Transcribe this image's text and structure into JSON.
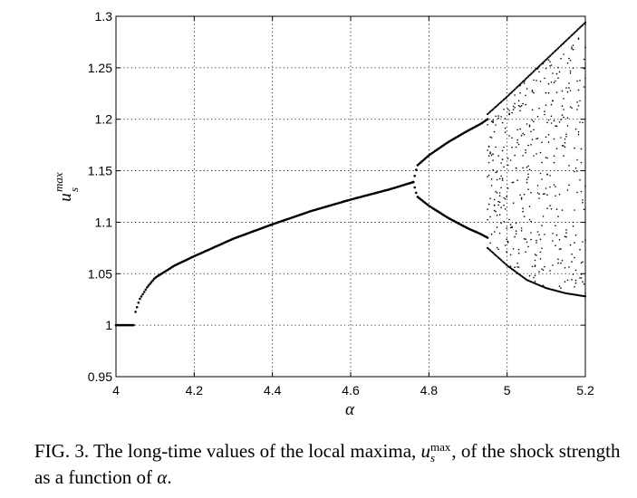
{
  "chart_data": {
    "type": "scatter",
    "title": "",
    "xlabel": "α",
    "ylabel": "u_s^max",
    "xlim": [
      4,
      5.2
    ],
    "ylim": [
      0.95,
      1.3
    ],
    "xticks": [
      4,
      4.2,
      4.4,
      4.6,
      4.8,
      5,
      5.2
    ],
    "yticks": [
      0.95,
      1,
      1.05,
      1.1,
      1.15,
      1.2,
      1.25,
      1.3
    ],
    "xtick_labels": [
      "4",
      "4.2",
      "4.4",
      "4.6",
      "4.8",
      "5",
      "5.2"
    ],
    "ytick_labels": [
      "0.95",
      "1",
      "1.05",
      "1.1",
      "1.15",
      "1.2",
      "1.25",
      "1.3"
    ],
    "grid": true,
    "grid_style": "dotted",
    "marker_color": "#000000",
    "series": [
      {
        "branch": "fixed",
        "x": [
          4.0,
          4.02,
          4.045
        ],
        "y": [
          1.0,
          1.0,
          1.0
        ]
      },
      {
        "branch": "single",
        "x": [
          4.05,
          4.06,
          4.08,
          4.1,
          4.15,
          4.2,
          4.3,
          4.4,
          4.5,
          4.6,
          4.7,
          4.76
        ],
        "y": [
          1.013,
          1.025,
          1.037,
          1.046,
          1.058,
          1.067,
          1.084,
          1.098,
          1.111,
          1.122,
          1.132,
          1.139
        ]
      },
      {
        "branch": "period-2 upper",
        "x": [
          4.76,
          4.77,
          4.8,
          4.85,
          4.9,
          4.93,
          4.95
        ],
        "y": [
          1.139,
          1.155,
          1.165,
          1.178,
          1.189,
          1.195,
          1.2
        ]
      },
      {
        "branch": "period-2 lower",
        "x": [
          4.76,
          4.77,
          4.8,
          4.85,
          4.9,
          4.93,
          4.95
        ],
        "y": [
          1.139,
          1.125,
          1.116,
          1.104,
          1.094,
          1.089,
          1.085
        ]
      },
      {
        "branch": "chaotic band upper edge",
        "x": [
          4.95,
          5.0,
          5.05,
          5.1,
          5.15,
          5.2
        ],
        "y": [
          1.205,
          1.222,
          1.24,
          1.258,
          1.276,
          1.294
        ]
      },
      {
        "branch": "chaotic band lower edge",
        "x": [
          4.95,
          5.0,
          5.05,
          5.1,
          5.15,
          5.2
        ],
        "y": [
          1.075,
          1.058,
          1.044,
          1.036,
          1.031,
          1.028
        ]
      }
    ]
  },
  "caption": {
    "lead": "FIG. 3.   The long-time values of the local maxima,",
    "symbol": "u",
    "superscript": "max",
    "subscript": "s",
    "after_symbol": ", of the shock strength as a function of",
    "alpha": "α",
    "end": "."
  }
}
